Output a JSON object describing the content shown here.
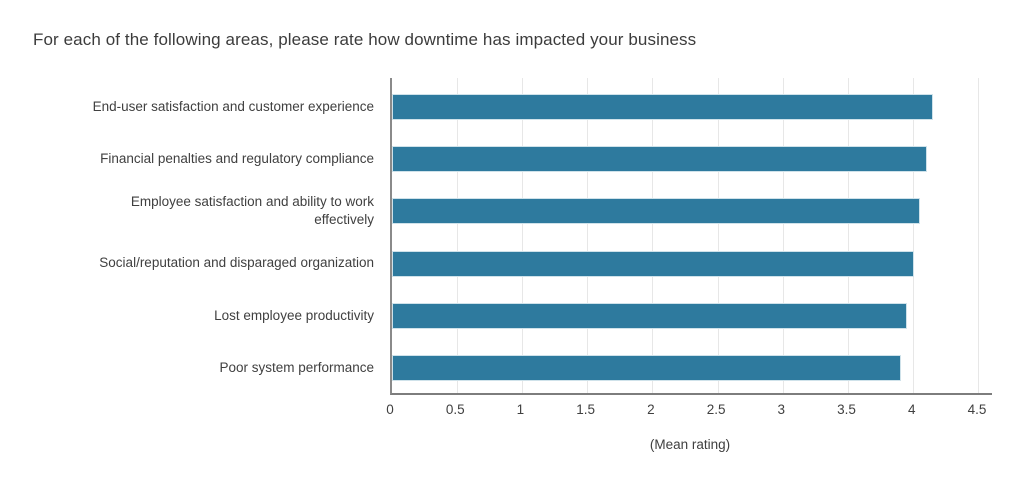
{
  "chart_data": {
    "type": "bar",
    "orientation": "horizontal",
    "title": "For each of the following areas, please rate how downtime has impacted your business",
    "categories": [
      "End-user satisfaction and customer experience",
      "Financial penalties and regulatory compliance",
      "Employee satisfaction and ability to work effectively",
      "Social/reputation and disparaged organization",
      "Lost employee productivity",
      "Poor system performance"
    ],
    "values": [
      4.15,
      4.1,
      4.05,
      4.0,
      3.95,
      3.9
    ],
    "xlabel": "(Mean rating)",
    "xlim": [
      0,
      4.6
    ],
    "xtick_values": [
      0,
      0.5,
      1,
      1.5,
      2,
      2.5,
      3,
      3.5,
      4,
      4.5
    ],
    "xtick_labels": [
      "0",
      "0.5",
      "1",
      "1.5",
      "2",
      "2.5",
      "3",
      "3.5",
      "4",
      "4.5"
    ],
    "grid": "vertical",
    "legend": "none",
    "colors": {
      "bar_fill": "#2e7a9e",
      "bar_border": "#cfe2ea",
      "gridline": "#e7e7e7",
      "axis_line": "#8a8a8a",
      "text": "#3f3f3f"
    }
  }
}
